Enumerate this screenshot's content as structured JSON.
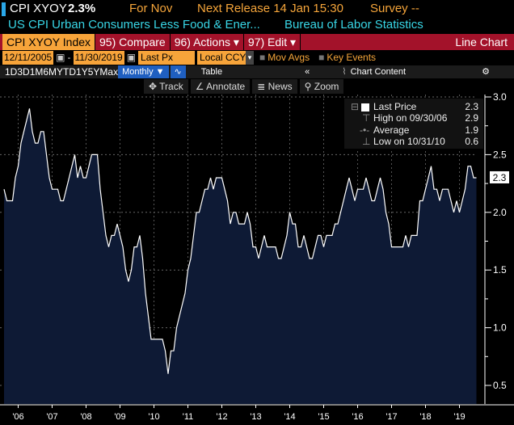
{
  "header": {
    "ticker": "CPI XYOY",
    "value": "2.3%",
    "period": "For Nov",
    "next_release": "Next Release 14 Jan 15:30",
    "survey": "Survey --",
    "description": "US CPI Urban Consumers Less Food & Ener...",
    "source": "Bureau of Labor Statistics"
  },
  "toolbar": {
    "security": "CPI XYOY Index",
    "compare": "95) Compare",
    "actions": "96) Actions ▾",
    "edit": "97) Edit ▾",
    "chart_type": "Line Chart",
    "start_date": "12/11/2005",
    "end_date": "11/30/2019",
    "field": "Last Px",
    "currency": "Local CCY",
    "mov_avgs": "Mov Avgs",
    "key_events": "Key Events"
  },
  "ranges": [
    "1D",
    "3D",
    "1M",
    "6M",
    "YTD",
    "1Y",
    "5Y",
    "Max"
  ],
  "frequency": "Monthly ▼",
  "table_label": "Table",
  "chart_content": "Chart Content",
  "collapse": "«",
  "tools": {
    "track": "✥ Track",
    "annotate": "∠ Annotate",
    "news": "≣ News",
    "zoom": "⚲ Zoom"
  },
  "legend": {
    "last_label": "Last Price",
    "last": "2.3",
    "high_label": "High on 09/30/06",
    "high": "2.9",
    "avg_label": "Average",
    "avg": "1.9",
    "low_label": "Low on 10/31/10",
    "low": "0.6"
  },
  "colors": {
    "fill": "#0e1a35",
    "line": "#ffffff",
    "accent": "#f7a43a",
    "bar": "#a3122a"
  },
  "chart_data": {
    "type": "area",
    "title": "CPI XYOY Index",
    "start": "2005-12",
    "frequency": "monthly",
    "values": [
      2.2,
      2.1,
      2.1,
      2.1,
      2.3,
      2.4,
      2.6,
      2.7,
      2.8,
      2.9,
      2.7,
      2.6,
      2.6,
      2.7,
      2.7,
      2.5,
      2.3,
      2.2,
      2.2,
      2.2,
      2.1,
      2.1,
      2.2,
      2.3,
      2.4,
      2.5,
      2.3,
      2.4,
      2.3,
      2.3,
      2.4,
      2.5,
      2.5,
      2.5,
      2.2,
      2.0,
      1.8,
      1.7,
      1.8,
      1.8,
      1.9,
      1.8,
      1.7,
      1.5,
      1.4,
      1.5,
      1.7,
      1.7,
      1.8,
      1.6,
      1.3,
      1.1,
      0.9,
      0.9,
      0.9,
      0.9,
      0.9,
      0.8,
      0.6,
      0.8,
      0.8,
      1.0,
      1.1,
      1.2,
      1.3,
      1.5,
      1.6,
      1.8,
      2.0,
      2.0,
      2.1,
      2.2,
      2.2,
      2.3,
      2.2,
      2.3,
      2.3,
      2.3,
      2.2,
      2.1,
      1.9,
      2.0,
      2.0,
      1.9,
      1.9,
      1.9,
      2.0,
      1.9,
      1.7,
      1.7,
      1.6,
      1.7,
      1.8,
      1.7,
      1.7,
      1.7,
      1.7,
      1.6,
      1.6,
      1.7,
      1.8,
      2.0,
      1.9,
      1.9,
      1.7,
      1.7,
      1.8,
      1.7,
      1.6,
      1.6,
      1.7,
      1.8,
      1.8,
      1.7,
      1.8,
      1.8,
      1.8,
      1.9,
      1.9,
      2.0,
      2.1,
      2.2,
      2.3,
      2.2,
      2.1,
      2.2,
      2.2,
      2.2,
      2.3,
      2.2,
      2.1,
      2.1,
      2.2,
      2.3,
      2.2,
      2.0,
      1.9,
      1.7,
      1.7,
      1.7,
      1.7,
      1.7,
      1.8,
      1.7,
      1.8,
      1.8,
      1.8,
      2.1,
      2.1,
      2.2,
      2.3,
      2.4,
      2.2,
      2.2,
      2.1,
      2.2,
      2.2,
      2.2,
      2.1,
      2.0,
      2.1,
      2.0,
      2.1,
      2.2,
      2.4,
      2.4,
      2.3,
      2.3
    ],
    "x_ticks": [
      "'06",
      "'07",
      "'08",
      "'09",
      "'10",
      "'11",
      "'12",
      "'13",
      "'14",
      "'15",
      "'16",
      "'17",
      "'18",
      "'19"
    ],
    "y_ticks": [
      "0.5",
      "1.0",
      "1.5",
      "2.0",
      "2.5",
      "3.0"
    ],
    "ylim": [
      0.5,
      3.0
    ],
    "grid": true,
    "legend_position": "top-right",
    "last_value": "2.3"
  }
}
